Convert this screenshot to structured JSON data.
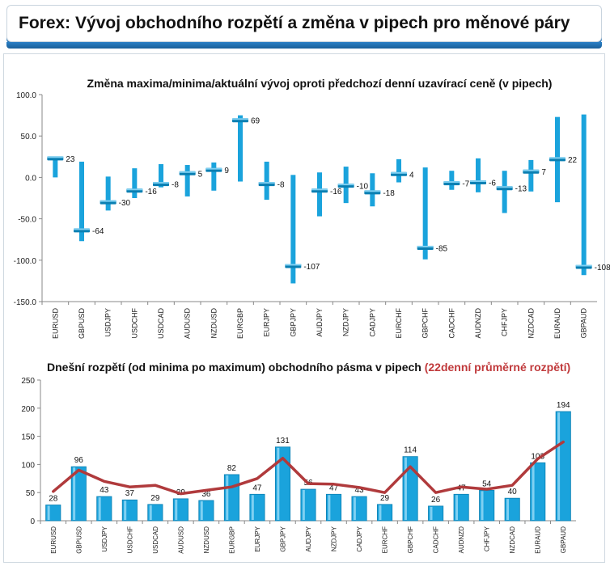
{
  "page": {
    "title": "Forex: Vývoj obchodního rozpětí a změna v pipech pro měnové páry"
  },
  "colors": {
    "bar": "#1aa3dc",
    "bar_dark": "#0a7fb2",
    "line": "#b03a3c",
    "red_text": "#c0393b",
    "accent": "#1d6fb5"
  },
  "chart_data": [
    {
      "type": "range",
      "title": "Změna maxima/minima/aktuální vývoj oproti předchozí denní uzavírací ceně (v pipech)",
      "ylim": [
        -150,
        100
      ],
      "yticks": [
        "100.0",
        "50.0",
        "0.0",
        "-50.0",
        "-100.0",
        "-150.0"
      ],
      "ytick_values": [
        100,
        50,
        0,
        -50,
        -100,
        -150
      ],
      "grid": false,
      "categories": [
        "EURUSD",
        "GBPUSD",
        "USDJPY",
        "USDCHF",
        "USDCAD",
        "AUDUSD",
        "NZDUSD",
        "EURGBP",
        "EURJPY",
        "GBPJPY",
        "AUDJPY",
        "NZDJPY",
        "CADJPY",
        "EURCHF",
        "GBPCHF",
        "CADCHF",
        "AUDNZD",
        "CHFJPY",
        "NZDCAD",
        "EURAUD",
        "GBPAUD"
      ],
      "high": [
        24,
        19,
        1,
        11,
        16,
        15,
        18,
        75,
        19,
        3,
        6,
        13,
        5,
        22,
        12,
        8,
        23,
        8,
        21,
        73,
        76
      ],
      "low": [
        0,
        -77,
        -40,
        -25,
        -12,
        -23,
        -16,
        -5,
        -27,
        -128,
        -47,
        -31,
        -35,
        -6,
        -99,
        -15,
        -18,
        -43,
        -17,
        -30,
        -118
      ],
      "current": [
        23,
        -64,
        -30,
        -16,
        -8,
        5,
        9,
        69,
        -8,
        -107,
        -16,
        -10,
        -18,
        4,
        -85,
        -7,
        -6,
        -13,
        7,
        22,
        -108
      ],
      "labels": [
        "23",
        "-64",
        "-30",
        "-16",
        "-8",
        "5",
        "9",
        "69",
        "-8",
        "-107",
        "-16",
        "-10",
        "-18",
        "4",
        "-85",
        "-7",
        "-6",
        "-13",
        "7",
        "22",
        "-108"
      ]
    },
    {
      "type": "bar",
      "title": "Dnešní rozpětí (od minima po maximum) obchodního pásma v pipech",
      "title_extra": "(22denní průměrné rozpětí)",
      "ylim": [
        0,
        250
      ],
      "yticks": [
        "250",
        "200",
        "150",
        "100",
        "50",
        "0"
      ],
      "ytick_values": [
        250,
        200,
        150,
        100,
        50,
        0
      ],
      "grid": false,
      "categories": [
        "EURUSD",
        "GBPUSD",
        "USDJPY",
        "USDCHF",
        "USDCAD",
        "AUDUSD",
        "NZDUSD",
        "EURGBP",
        "EURJPY",
        "GBPJPY",
        "AUDJPY",
        "NZDJPY",
        "CADJPY",
        "EURCHF",
        "GBPCHF",
        "CADCHF",
        "AUDNZD",
        "CHFJPY",
        "NZDCAD",
        "EURAUD",
        "GBPAUD"
      ],
      "values": [
        28,
        96,
        43,
        37,
        29,
        39,
        36,
        82,
        47,
        131,
        56,
        47,
        43,
        29,
        114,
        26,
        47,
        54,
        40,
        103,
        194
      ],
      "value_labels": [
        "28",
        "96",
        "43",
        "37",
        "29",
        "39",
        "36",
        "82",
        "47",
        "131",
        "56",
        "47",
        "43",
        "29",
        "114",
        "26",
        "47",
        "54",
        "40",
        "103",
        "194"
      ],
      "series": [
        {
          "type": "bar",
          "values": [
            28,
            96,
            43,
            37,
            29,
            39,
            36,
            82,
            47,
            131,
            56,
            47,
            43,
            29,
            114,
            26,
            47,
            54,
            40,
            103,
            194
          ]
        },
        {
          "type": "line",
          "values": [
            52,
            90,
            70,
            60,
            63,
            48,
            54,
            60,
            75,
            111,
            66,
            65,
            59,
            50,
            96,
            50,
            60,
            56,
            63,
            110,
            140
          ]
        }
      ]
    }
  ]
}
